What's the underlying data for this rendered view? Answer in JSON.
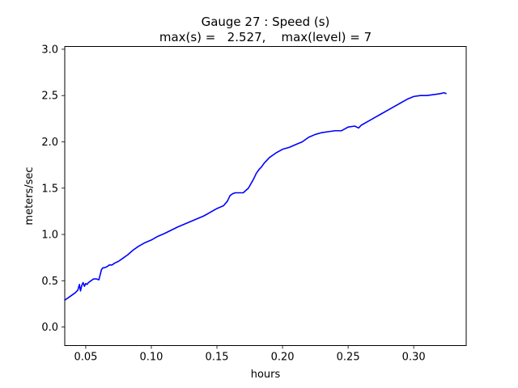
{
  "chart_data": {
    "type": "line",
    "title": "Gauge 27 : Speed (s)",
    "subtitle": "max(s) =   2.527,    max(level) = 7",
    "xlabel": "hours",
    "ylabel": "meters/sec",
    "xlim": [
      0.034,
      0.34
    ],
    "ylim": [
      -0.2,
      3.03
    ],
    "xticks": [
      0.05,
      0.1,
      0.15,
      0.2,
      0.25,
      0.3
    ],
    "xtick_labels": [
      "0.05",
      "0.10",
      "0.15",
      "0.20",
      "0.25",
      "0.30"
    ],
    "yticks": [
      0.0,
      0.5,
      1.0,
      1.5,
      2.0,
      2.5,
      3.0
    ],
    "ytick_labels": [
      "0.0",
      "0.5",
      "1.0",
      "1.5",
      "2.0",
      "2.5",
      "3.0"
    ],
    "grid": false,
    "series": [
      {
        "color": "#0000ff",
        "x": [
          0.034,
          0.038,
          0.042,
          0.044,
          0.0452,
          0.046,
          0.047,
          0.048,
          0.049,
          0.05,
          0.051,
          0.052,
          0.054,
          0.056,
          0.058,
          0.06,
          0.062,
          0.063,
          0.064,
          0.066,
          0.068,
          0.07,
          0.072,
          0.075,
          0.078,
          0.082,
          0.086,
          0.09,
          0.095,
          0.1,
          0.105,
          0.11,
          0.12,
          0.13,
          0.14,
          0.15,
          0.155,
          0.158,
          0.16,
          0.162,
          0.164,
          0.166,
          0.17,
          0.174,
          0.178,
          0.18,
          0.182,
          0.184,
          0.186,
          0.188,
          0.19,
          0.195,
          0.2,
          0.205,
          0.21,
          0.215,
          0.22,
          0.225,
          0.23,
          0.235,
          0.24,
          0.245,
          0.25,
          0.255,
          0.258,
          0.26,
          0.265,
          0.27,
          0.275,
          0.28,
          0.285,
          0.29,
          0.295,
          0.3,
          0.305,
          0.31,
          0.315,
          0.32,
          0.323,
          0.325
        ],
        "values": [
          0.29,
          0.33,
          0.37,
          0.4,
          0.46,
          0.39,
          0.45,
          0.48,
          0.44,
          0.47,
          0.46,
          0.48,
          0.5,
          0.52,
          0.52,
          0.51,
          0.62,
          0.64,
          0.64,
          0.65,
          0.67,
          0.67,
          0.69,
          0.71,
          0.74,
          0.78,
          0.83,
          0.87,
          0.91,
          0.94,
          0.98,
          1.01,
          1.08,
          1.14,
          1.2,
          1.28,
          1.31,
          1.36,
          1.42,
          1.44,
          1.45,
          1.45,
          1.45,
          1.5,
          1.6,
          1.66,
          1.7,
          1.73,
          1.77,
          1.8,
          1.83,
          1.88,
          1.92,
          1.94,
          1.97,
          2.0,
          2.05,
          2.08,
          2.1,
          2.11,
          2.12,
          2.12,
          2.16,
          2.17,
          2.15,
          2.18,
          2.22,
          2.26,
          2.3,
          2.34,
          2.38,
          2.42,
          2.46,
          2.49,
          2.5,
          2.5,
          2.51,
          2.52,
          2.53,
          2.52
        ]
      }
    ]
  }
}
